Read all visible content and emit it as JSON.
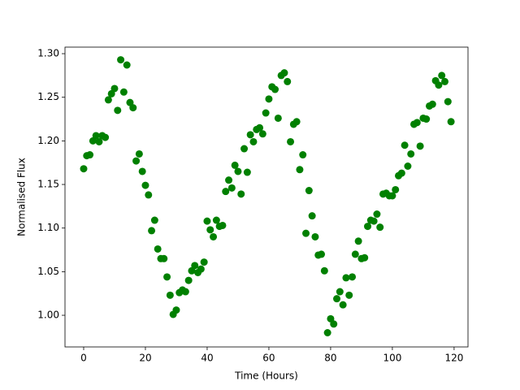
{
  "chart_data": {
    "type": "scatter",
    "x_label": "Time (Hours)",
    "y_label": "Normalised Flux",
    "color": "#008000",
    "x": [
      0,
      1,
      2,
      3,
      4,
      5,
      6,
      7,
      8,
      9,
      10,
      11,
      12,
      13,
      14,
      15,
      16,
      17,
      18,
      19,
      20,
      21,
      22,
      23,
      24,
      25,
      26,
      27,
      28,
      29,
      30,
      31,
      32,
      33,
      34,
      35,
      36,
      37,
      38,
      39,
      40,
      41,
      42,
      43,
      44,
      45,
      46,
      47,
      48,
      49,
      50,
      51,
      52,
      53,
      54,
      55,
      56,
      57,
      58,
      59,
      60,
      61,
      62,
      63,
      64,
      65,
      66,
      67,
      68,
      69,
      70,
      71,
      72,
      73,
      74,
      75,
      76,
      77,
      78,
      79,
      80,
      81,
      82,
      83,
      84,
      85,
      86,
      87,
      88,
      89,
      90,
      91,
      92,
      93,
      94,
      95,
      96,
      97,
      98,
      99,
      100,
      101,
      102,
      103,
      104,
      105,
      106,
      107,
      108,
      109,
      110,
      111,
      112,
      113,
      114,
      115,
      116,
      117,
      118,
      119
    ],
    "values": [
      1.168,
      1.183,
      1.184,
      1.2,
      1.206,
      1.199,
      1.206,
      1.204,
      1.247,
      1.254,
      1.26,
      1.235,
      1.293,
      1.256,
      1.287,
      1.244,
      1.238,
      1.177,
      1.185,
      1.165,
      1.149,
      1.138,
      1.097,
      1.109,
      1.076,
      1.065,
      1.065,
      1.044,
      1.023,
      1.001,
      1.006,
      1.026,
      1.029,
      1.027,
      1.04,
      1.051,
      1.057,
      1.049,
      1.053,
      1.061,
      1.108,
      1.098,
      1.09,
      1.109,
      1.102,
      1.103,
      1.142,
      1.155,
      1.146,
      1.172,
      1.165,
      1.139,
      1.191,
      1.164,
      1.207,
      1.199,
      1.213,
      1.215,
      1.208,
      1.232,
      1.248,
      1.262,
      1.259,
      1.226,
      1.275,
      1.278,
      1.268,
      1.199,
      1.219,
      1.222,
      1.167,
      1.184,
      1.094,
      1.143,
      1.114,
      1.09,
      1.069,
      1.07,
      1.051,
      0.98,
      0.996,
      0.99,
      1.019,
      1.027,
      1.012,
      1.043,
      1.023,
      1.044,
      1.07,
      1.085,
      1.065,
      1.066,
      1.102,
      1.109,
      1.108,
      1.116,
      1.101,
      1.139,
      1.14,
      1.137,
      1.137,
      1.144,
      1.16,
      1.163,
      1.195,
      1.171,
      1.185,
      1.219,
      1.221,
      1.194,
      1.226,
      1.225,
      1.24,
      1.242,
      1.269,
      1.264,
      1.275,
      1.268,
      1.245,
      1.222
    ],
    "xlim": [
      -6.05,
      124.5
    ],
    "ylim": [
      0.9637,
      1.3075
    ],
    "xticks": [
      0,
      20,
      40,
      60,
      80,
      100,
      120
    ],
    "yticks": [
      {
        "value": 1,
        "label": "1.00"
      },
      1.05,
      {
        "value": 1.1,
        "label": "1.10"
      },
      1.15,
      {
        "value": 1.2,
        "label": "1.20"
      },
      1.25,
      {
        "value": 1.3,
        "label": "1.30"
      }
    ]
  }
}
